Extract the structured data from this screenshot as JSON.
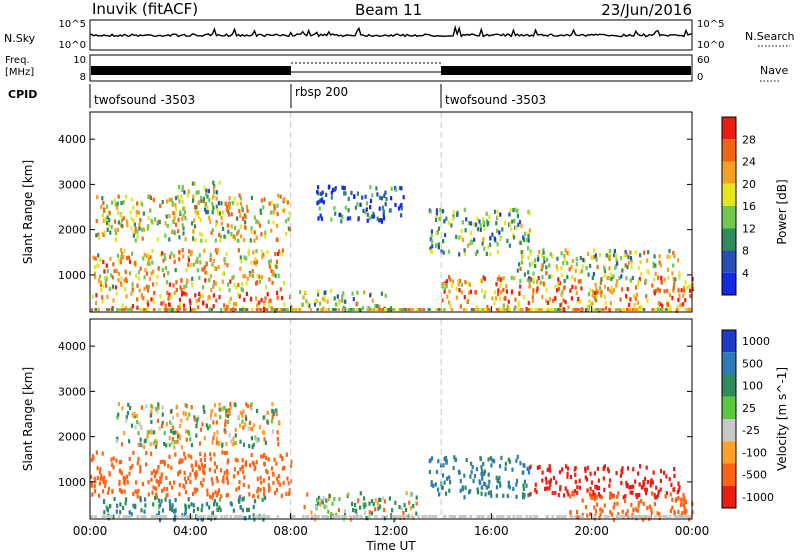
{
  "header": {
    "station": "Inuvik (fitACF)",
    "beam": "Beam 11",
    "date": "23/Jun/2016"
  },
  "sky_panel": {
    "label_left": "N.Sky",
    "label_right": "N.Search",
    "ticks_left": [
      "10^5",
      "10^0"
    ],
    "ticks_right": [
      "10^5",
      "10^0"
    ]
  },
  "freq_panel": {
    "label_left_1": "Freq.",
    "label_left_2": "[MHz]",
    "label_right": "Nave",
    "ticks_left": [
      "10",
      "8"
    ],
    "ticks_right": [
      "60",
      "0"
    ]
  },
  "cpid_panel": {
    "label": "CPID",
    "segments": [
      {
        "name": "twofsound -3503",
        "start_hour": 0,
        "end_hour": 8
      },
      {
        "name": "rbsp 200",
        "start_hour": 8,
        "end_hour": 14
      },
      {
        "name": "twofsound -3503",
        "start_hour": 14,
        "end_hour": 24
      }
    ]
  },
  "power_panel": {
    "ylabel": "Slant Range [km]",
    "ytick_labels": [
      "1000",
      "2000",
      "3000",
      "4000"
    ],
    "colorbar_label": "Power [dB]",
    "colorbar_ticks": [
      "4",
      "8",
      "12",
      "16",
      "20",
      "24",
      "28"
    ],
    "colorbar_colors": [
      "#1428e6",
      "#2850b4",
      "#2e8c5a",
      "#6ec850",
      "#e6e61e",
      "#f5a01e",
      "#f06414",
      "#e61e14"
    ]
  },
  "velocity_panel": {
    "ylabel": "Slant Range [km]",
    "ytick_labels": [
      "1000",
      "2000",
      "3000",
      "4000"
    ],
    "colorbar_label": "Velocity [m s^-1]",
    "colorbar_ticks": [
      "1000",
      "500",
      "100",
      "25",
      "-25",
      "-100",
      "-500",
      "-1000"
    ],
    "colorbar_colors": [
      "#1e3cc8",
      "#2f7ab4",
      "#2e8c5a",
      "#5ac83c",
      "#c8c8c8",
      "#ffa028",
      "#ff6414",
      "#e61e14"
    ]
  },
  "x_axis": {
    "xlabel": "Time UT",
    "tick_labels": [
      "00:00",
      "04:00",
      "08:00",
      "12:00",
      "16:00",
      "20:00",
      "00:00"
    ]
  },
  "chart_data": {
    "type": "heatmap",
    "title": "Inuvik (fitACF)  Beam 11  23/Jun/2016",
    "xlabel": "Time UT",
    "ylabel": "Slant Range [km]",
    "xlim_hours": [
      0,
      24
    ],
    "ylim_km": [
      180,
      4600
    ],
    "mode_changes_hours": [
      8,
      14
    ],
    "power_regions": [
      {
        "t0": 0.2,
        "t1": 8.0,
        "r0": 1800,
        "r1": 2800,
        "level_db": 18
      },
      {
        "t0": 0.0,
        "t1": 7.8,
        "r0": 700,
        "r1": 1600,
        "level_db": 20
      },
      {
        "t0": 0.0,
        "t1": 8.0,
        "r0": 250,
        "r1": 650,
        "level_db": 26
      },
      {
        "t0": 3.5,
        "t1": 5.2,
        "r0": 2400,
        "r1": 3100,
        "level_db": 14
      },
      {
        "t0": 9.0,
        "t1": 12.5,
        "r0": 2200,
        "r1": 3000,
        "level_db": 6
      },
      {
        "t0": 8.3,
        "t1": 12.0,
        "r0": 250,
        "r1": 700,
        "level_db": 14
      },
      {
        "t0": 13.5,
        "t1": 17.5,
        "r0": 1500,
        "r1": 2500,
        "level_db": 12
      },
      {
        "t0": 14.0,
        "t1": 24.0,
        "r0": 250,
        "r1": 1000,
        "level_db": 24
      },
      {
        "t0": 17.0,
        "t1": 23.5,
        "r0": 900,
        "r1": 1600,
        "level_db": 16
      }
    ],
    "velocity_regions": [
      {
        "t0": 1.0,
        "t1": 7.5,
        "r0": 1800,
        "r1": 2800,
        "velocity_ms": 0
      },
      {
        "t0": 0.0,
        "t1": 8.0,
        "r0": 700,
        "r1": 1700,
        "velocity_ms": -300
      },
      {
        "t0": 0.5,
        "t1": 7.0,
        "r0": 200,
        "r1": 700,
        "velocity_ms": 200
      },
      {
        "t0": 8.5,
        "t1": 13.0,
        "r0": 200,
        "r1": 800,
        "velocity_ms": 0
      },
      {
        "t0": 13.5,
        "t1": 17.5,
        "r0": 700,
        "r1": 1600,
        "velocity_ms": 300
      },
      {
        "t0": 17.5,
        "t1": 23.5,
        "r0": 700,
        "r1": 1400,
        "velocity_ms": -700
      },
      {
        "t0": 19.0,
        "t1": 24.0,
        "r0": 200,
        "r1": 800,
        "velocity_ms": -300
      }
    ]
  }
}
